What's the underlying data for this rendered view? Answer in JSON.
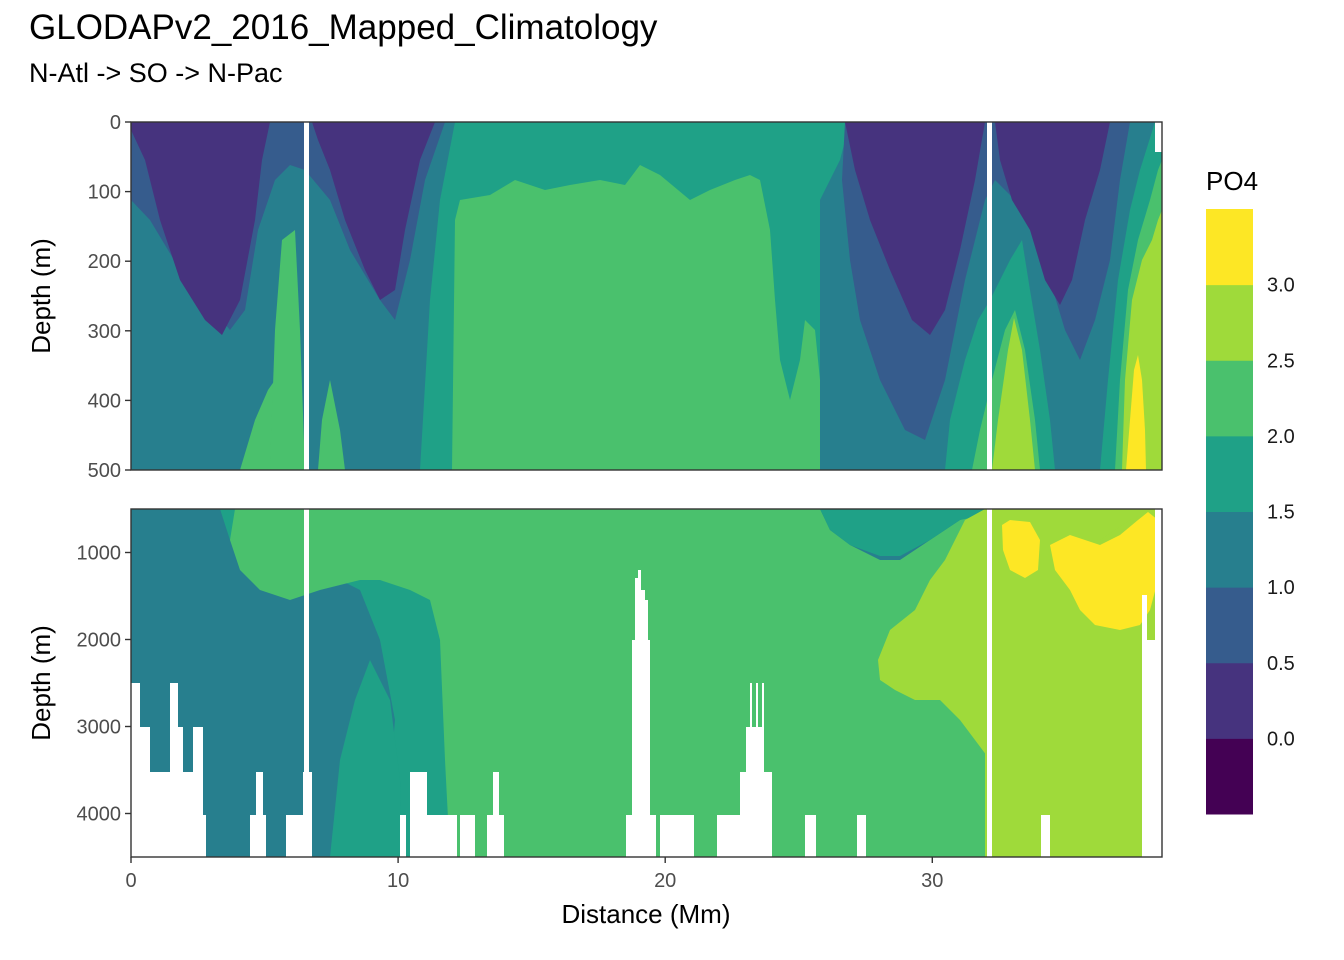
{
  "chart_data": {
    "type": "heatmap",
    "title": "GLODAPv2_2016_Mapped_Climatology",
    "subtitle": "N-Atl -> SO -> N-Pac",
    "xlabel": "Distance (Mm)",
    "ylabel": "Depth (m)",
    "xlim": [
      0,
      38.6
    ],
    "x_ticks": [
      "0",
      "10",
      "20",
      "30"
    ],
    "x_tick_values": [
      0,
      10,
      20,
      30
    ],
    "grid": true,
    "legend": {
      "title": "PO4",
      "position": "right",
      "breaks": [
        "0.0",
        "0.5",
        "1.0",
        "1.5",
        "2.0",
        "2.5",
        "3.0"
      ],
      "break_values": [
        0.0,
        0.5,
        1.0,
        1.5,
        2.0,
        2.5,
        3.0
      ],
      "colors": [
        "#440154",
        "#46337E",
        "#365C8D",
        "#277F8E",
        "#1FA187",
        "#4AC16D",
        "#9FDA3A",
        "#FDE725"
      ]
    },
    "panels": [
      {
        "ylim": [
          500,
          0
        ],
        "y_ticks": [
          "0",
          "100",
          "200",
          "300",
          "400",
          "500"
        ],
        "y_tick_values": [
          0,
          100,
          200,
          300,
          400,
          500
        ],
        "section_lines_x": [
          6.5,
          32.1
        ]
      },
      {
        "ylim": [
          4500,
          500
        ],
        "y_ticks": [
          "1000",
          "2000",
          "3000",
          "4000"
        ],
        "y_tick_values": [
          1000,
          2000,
          3000,
          4000
        ],
        "section_lines_x": [
          6.5,
          32.1
        ]
      }
    ]
  }
}
